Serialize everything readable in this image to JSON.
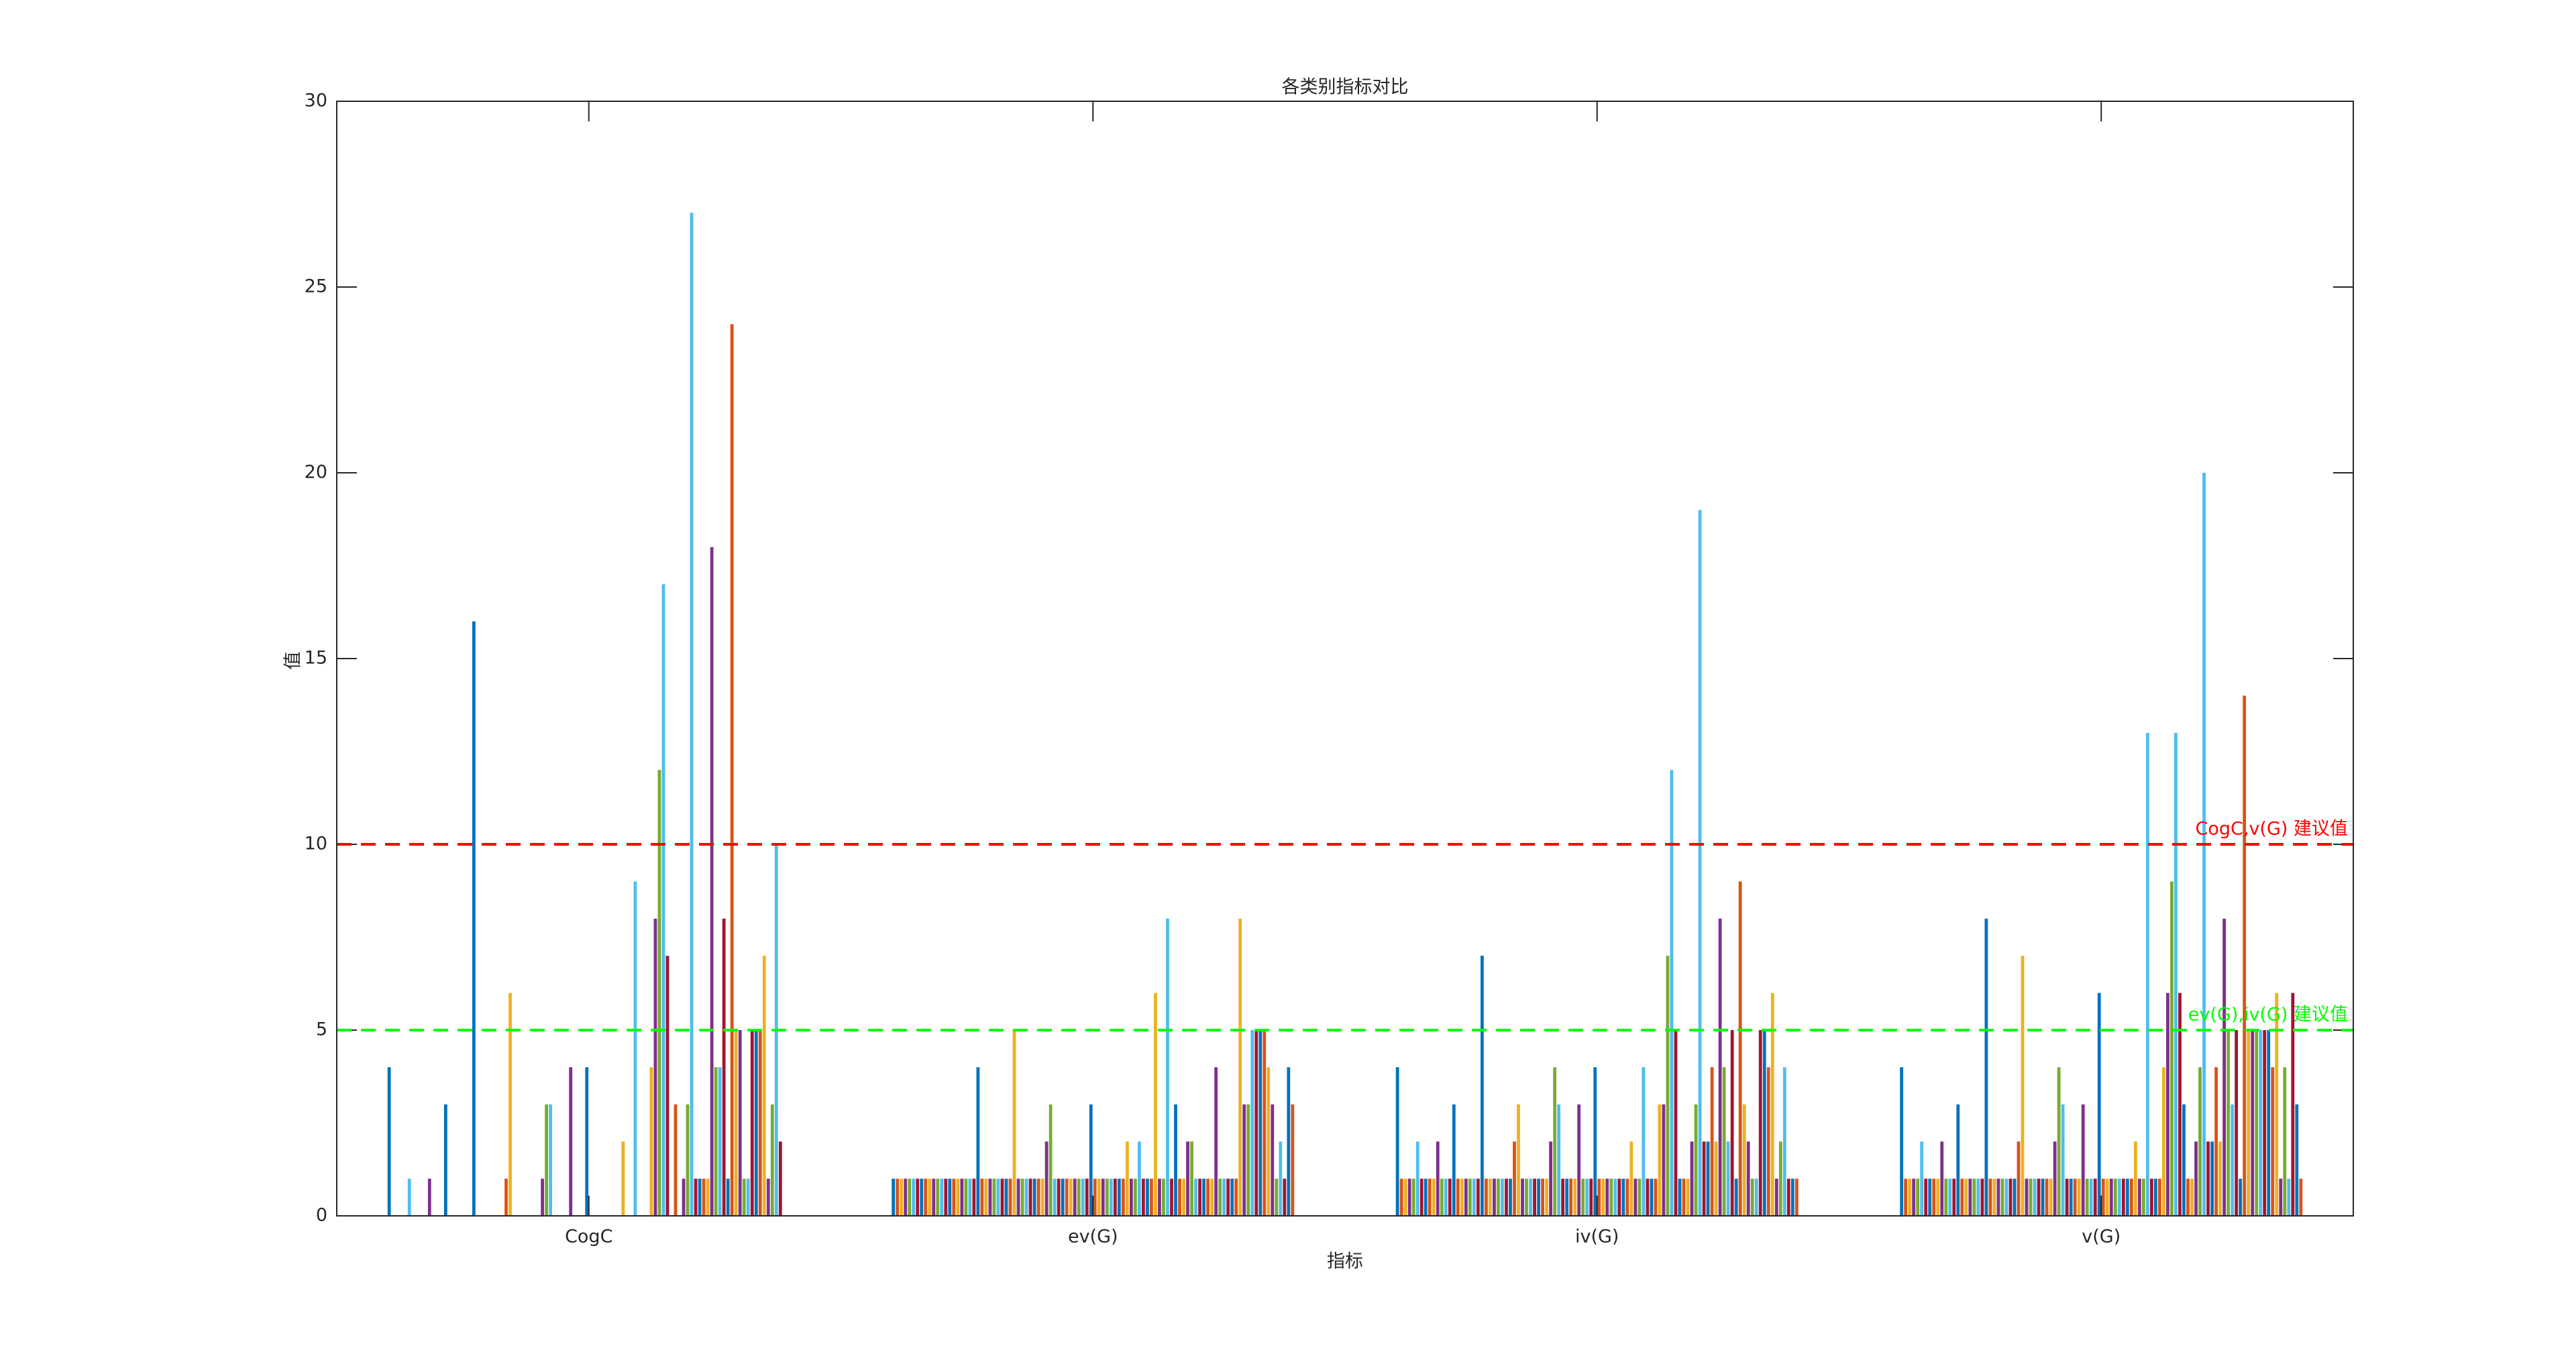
{
  "chart_data": {
    "type": "bar",
    "title": "各类别指标对比",
    "x_label": "指标",
    "y_label": "值",
    "categories": [
      "CogC",
      "ev(G)",
      "iv(G)",
      "v(G)"
    ],
    "ylim": [
      0,
      30
    ],
    "yticks": [
      0,
      5,
      10,
      15,
      20,
      25,
      30
    ],
    "grid": false,
    "reference_lines": [
      {
        "value": 10,
        "label": "CogC,v(G) 建议值",
        "color": "#ff0000"
      },
      {
        "value": 5,
        "label": "ev(G),iv(G) 建议值",
        "color": "#00ff00"
      }
    ],
    "series": [
      {
        "color": "#0072BD",
        "values": [
          4,
          1,
          4,
          4
        ]
      },
      {
        "color": "#D95319",
        "values": [
          0,
          1,
          1,
          1
        ]
      },
      {
        "color": "#EDB120",
        "values": [
          0,
          1,
          1,
          1
        ]
      },
      {
        "color": "#7E2F8E",
        "values": [
          0,
          1,
          1,
          1
        ]
      },
      {
        "color": "#77AC30",
        "values": [
          0,
          1,
          1,
          1
        ]
      },
      {
        "color": "#4DBEEE",
        "values": [
          1,
          1,
          2,
          2
        ]
      },
      {
        "color": "#A2142F",
        "values": [
          0,
          1,
          1,
          1
        ]
      },
      {
        "color": "#0072BD",
        "values": [
          0,
          1,
          1,
          1
        ]
      },
      {
        "color": "#D95319",
        "values": [
          0,
          1,
          1,
          1
        ]
      },
      {
        "color": "#EDB120",
        "values": [
          0,
          1,
          1,
          1
        ]
      },
      {
        "color": "#7E2F8E",
        "values": [
          1,
          1,
          2,
          2
        ]
      },
      {
        "color": "#77AC30",
        "values": [
          0,
          1,
          1,
          1
        ]
      },
      {
        "color": "#4DBEEE",
        "values": [
          0,
          1,
          1,
          1
        ]
      },
      {
        "color": "#A2142F",
        "values": [
          0,
          1,
          1,
          1
        ]
      },
      {
        "color": "#0072BD",
        "values": [
          3,
          1,
          3,
          3
        ]
      },
      {
        "color": "#D95319",
        "values": [
          0,
          1,
          1,
          1
        ]
      },
      {
        "color": "#EDB120",
        "values": [
          0,
          1,
          1,
          1
        ]
      },
      {
        "color": "#7E2F8E",
        "values": [
          0,
          1,
          1,
          1
        ]
      },
      {
        "color": "#77AC30",
        "values": [
          0,
          1,
          1,
          1
        ]
      },
      {
        "color": "#4DBEEE",
        "values": [
          0,
          1,
          1,
          1
        ]
      },
      {
        "color": "#A2142F",
        "values": [
          0,
          1,
          1,
          1
        ]
      },
      {
        "color": "#0072BD",
        "values": [
          16,
          4,
          7,
          8
        ]
      },
      {
        "color": "#D95319",
        "values": [
          0,
          1,
          1,
          1
        ]
      },
      {
        "color": "#EDB120",
        "values": [
          0,
          1,
          1,
          1
        ]
      },
      {
        "color": "#7E2F8E",
        "values": [
          0,
          1,
          1,
          1
        ]
      },
      {
        "color": "#77AC30",
        "values": [
          0,
          1,
          1,
          1
        ]
      },
      {
        "color": "#4DBEEE",
        "values": [
          0,
          1,
          1,
          1
        ]
      },
      {
        "color": "#A2142F",
        "values": [
          0,
          1,
          1,
          1
        ]
      },
      {
        "color": "#0072BD",
        "values": [
          0,
          1,
          1,
          1
        ]
      },
      {
        "color": "#D95319",
        "values": [
          1,
          1,
          2,
          2
        ]
      },
      {
        "color": "#EDB120",
        "values": [
          6,
          5,
          3,
          7
        ]
      },
      {
        "color": "#7E2F8E",
        "values": [
          0,
          1,
          1,
          1
        ]
      },
      {
        "color": "#77AC30",
        "values": [
          0,
          1,
          1,
          1
        ]
      },
      {
        "color": "#4DBEEE",
        "values": [
          0,
          1,
          1,
          1
        ]
      },
      {
        "color": "#A2142F",
        "values": [
          0,
          1,
          1,
          1
        ]
      },
      {
        "color": "#0072BD",
        "values": [
          0,
          1,
          1,
          1
        ]
      },
      {
        "color": "#D95319",
        "values": [
          0,
          1,
          1,
          1
        ]
      },
      {
        "color": "#EDB120",
        "values": [
          0,
          1,
          1,
          1
        ]
      },
      {
        "color": "#7E2F8E",
        "values": [
          1,
          2,
          2,
          2
        ]
      },
      {
        "color": "#77AC30",
        "values": [
          3,
          3,
          4,
          4
        ]
      },
      {
        "color": "#4DBEEE",
        "values": [
          3,
          1,
          3,
          3
        ]
      },
      {
        "color": "#A2142F",
        "values": [
          0,
          1,
          1,
          1
        ]
      },
      {
        "color": "#0072BD",
        "values": [
          0,
          1,
          1,
          1
        ]
      },
      {
        "color": "#D95319",
        "values": [
          0,
          1,
          1,
          1
        ]
      },
      {
        "color": "#EDB120",
        "values": [
          0,
          1,
          1,
          1
        ]
      },
      {
        "color": "#7E2F8E",
        "values": [
          4,
          1,
          3,
          3
        ]
      },
      {
        "color": "#77AC30",
        "values": [
          0,
          1,
          1,
          1
        ]
      },
      {
        "color": "#4DBEEE",
        "values": [
          0,
          1,
          1,
          1
        ]
      },
      {
        "color": "#A2142F",
        "values": [
          0,
          1,
          1,
          1
        ]
      },
      {
        "color": "#0072BD",
        "values": [
          4,
          3,
          4,
          6
        ]
      },
      {
        "color": "#D95319",
        "values": [
          0,
          1,
          1,
          1
        ]
      },
      {
        "color": "#EDB120",
        "values": [
          0,
          1,
          1,
          1
        ]
      },
      {
        "color": "#7E2F8E",
        "values": [
          0,
          1,
          1,
          1
        ]
      },
      {
        "color": "#77AC30",
        "values": [
          0,
          1,
          1,
          1
        ]
      },
      {
        "color": "#4DBEEE",
        "values": [
          0,
          1,
          1,
          1
        ]
      },
      {
        "color": "#A2142F",
        "values": [
          0,
          1,
          1,
          1
        ]
      },
      {
        "color": "#0072BD",
        "values": [
          0,
          1,
          1,
          1
        ]
      },
      {
        "color": "#D95319",
        "values": [
          0,
          1,
          1,
          1
        ]
      },
      {
        "color": "#EDB120",
        "values": [
          2,
          2,
          2,
          2
        ]
      },
      {
        "color": "#7E2F8E",
        "values": [
          0,
          1,
          1,
          1
        ]
      },
      {
        "color": "#77AC30",
        "values": [
          0,
          1,
          1,
          1
        ]
      },
      {
        "color": "#4DBEEE",
        "values": [
          9,
          2,
          4,
          13
        ]
      },
      {
        "color": "#A2142F",
        "values": [
          0,
          1,
          1,
          1
        ]
      },
      {
        "color": "#0072BD",
        "values": [
          0,
          1,
          1,
          1
        ]
      },
      {
        "color": "#D95319",
        "values": [
          0,
          1,
          1,
          1
        ]
      },
      {
        "color": "#EDB120",
        "values": [
          4,
          6,
          3,
          4
        ]
      },
      {
        "color": "#7E2F8E",
        "values": [
          8,
          1,
          3,
          6
        ]
      },
      {
        "color": "#77AC30",
        "values": [
          12,
          1,
          7,
          9
        ]
      },
      {
        "color": "#4DBEEE",
        "values": [
          17,
          8,
          12,
          13
        ]
      },
      {
        "color": "#A2142F",
        "values": [
          7,
          1,
          5,
          6
        ]
      },
      {
        "color": "#0072BD",
        "values": [
          0,
          3,
          1,
          3
        ]
      },
      {
        "color": "#D95319",
        "values": [
          3,
          1,
          1,
          1
        ]
      },
      {
        "color": "#EDB120",
        "values": [
          0,
          1,
          1,
          1
        ]
      },
      {
        "color": "#7E2F8E",
        "values": [
          1,
          2,
          2,
          2
        ]
      },
      {
        "color": "#77AC30",
        "values": [
          3,
          2,
          3,
          4
        ]
      },
      {
        "color": "#4DBEEE",
        "values": [
          27,
          1,
          19,
          20
        ]
      },
      {
        "color": "#A2142F",
        "values": [
          1,
          1,
          2,
          2
        ]
      },
      {
        "color": "#0072BD",
        "values": [
          1,
          1,
          2,
          2
        ]
      },
      {
        "color": "#D95319",
        "values": [
          1,
          1,
          4,
          4
        ]
      },
      {
        "color": "#EDB120",
        "values": [
          1,
          1,
          2,
          2
        ]
      },
      {
        "color": "#7E2F8E",
        "values": [
          18,
          4,
          8,
          8
        ]
      },
      {
        "color": "#77AC30",
        "values": [
          4,
          1,
          4,
          5
        ]
      },
      {
        "color": "#4DBEEE",
        "values": [
          4,
          1,
          2,
          3
        ]
      },
      {
        "color": "#A2142F",
        "values": [
          8,
          1,
          5,
          5
        ]
      },
      {
        "color": "#0072BD",
        "values": [
          1,
          1,
          1,
          1
        ]
      },
      {
        "color": "#D95319",
        "values": [
          24,
          1,
          9,
          14
        ]
      },
      {
        "color": "#EDB120",
        "values": [
          5,
          8,
          3,
          5
        ]
      },
      {
        "color": "#7E2F8E",
        "values": [
          5,
          3,
          2,
          5
        ]
      },
      {
        "color": "#77AC30",
        "values": [
          1,
          3,
          1,
          5
        ]
      },
      {
        "color": "#4DBEEE",
        "values": [
          1,
          5,
          1,
          5
        ]
      },
      {
        "color": "#A2142F",
        "values": [
          5,
          5,
          5,
          5
        ]
      },
      {
        "color": "#0072BD",
        "values": [
          5,
          5,
          5,
          5
        ]
      },
      {
        "color": "#D95319",
        "values": [
          5,
          5,
          4,
          4
        ]
      },
      {
        "color": "#EDB120",
        "values": [
          7,
          4,
          6,
          6
        ]
      },
      {
        "color": "#7E2F8E",
        "values": [
          1,
          3,
          1,
          1
        ]
      },
      {
        "color": "#77AC30",
        "values": [
          3,
          1,
          2,
          4
        ]
      },
      {
        "color": "#4DBEEE",
        "values": [
          10,
          2,
          4,
          1
        ]
      },
      {
        "color": "#A2142F",
        "values": [
          2,
          1,
          1,
          6
        ]
      },
      {
        "color": "#0072BD",
        "values": [
          0,
          4,
          1,
          3
        ]
      },
      {
        "color": "#D95319",
        "values": [
          0,
          3,
          1,
          1
        ]
      }
    ]
  }
}
